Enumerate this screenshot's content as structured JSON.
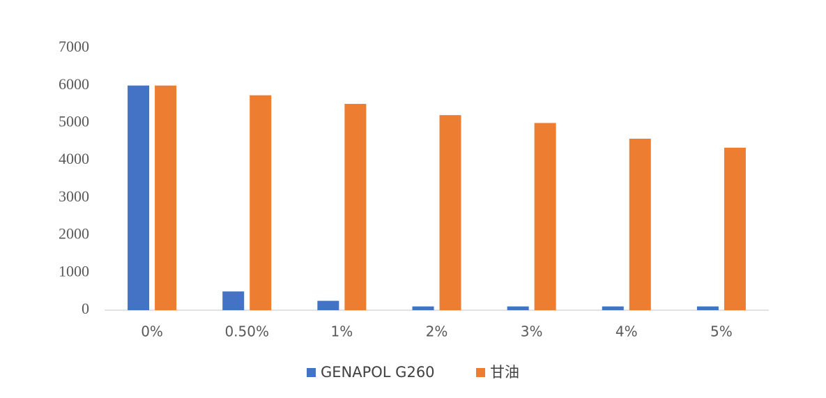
{
  "chart_data": {
    "type": "bar",
    "categories": [
      "0%",
      "0.50%",
      "1%",
      "2%",
      "3%",
      "4%",
      "5%"
    ],
    "series": [
      {
        "name": "GENAPOL G260",
        "color": "#4472c4",
        "values": [
          6000,
          500,
          250,
          100,
          100,
          100,
          100
        ]
      },
      {
        "name": "甘油",
        "color": "#ed7d31",
        "values": [
          6000,
          5740,
          5510,
          5210,
          5000,
          4580,
          4340
        ]
      }
    ],
    "ylim": [
      0,
      7000
    ],
    "yticks": [
      0,
      1000,
      2000,
      3000,
      4000,
      5000,
      6000,
      7000
    ],
    "grid": false,
    "legend": "bottom"
  }
}
